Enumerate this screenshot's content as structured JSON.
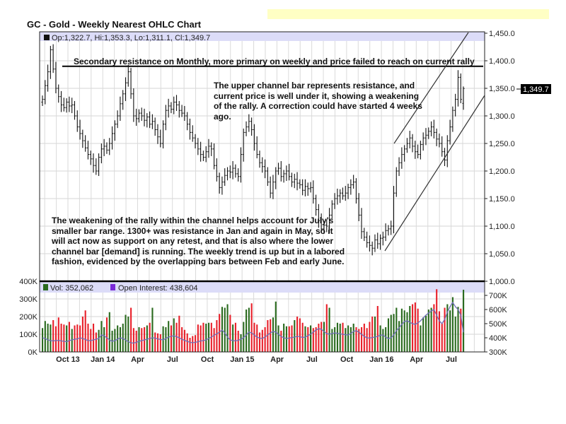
{
  "title": "GC - Gold - Weekly Nearest OHLC Chart",
  "price_legend": "Op:1,322.7, Hi:1,353.3, Lo:1,311.1, Cl:1,349.7",
  "last_price_label": "1,349.7",
  "volume_legend": {
    "vol": "Vol: 352,062",
    "oi": "Open Interest: 438,604"
  },
  "annotations": {
    "resistance": "Secondary resistance on Monthly, more primary on weekly and price failed to reach on current rally",
    "upper_channel": "The upper channel bar represents resistance, and current price is well under it, showing a weakening of the rally.  A correction could have started 4 weeks ago.",
    "lower_channel": "The weakening of the rally within the channel helps account for July's smaller bar range.  1300+ was resistance in Jan and again in May, so it will act now as support on any retest, and that is also where the lower channel bar [demand] is running.  The weekly trend is up but in a labored fashion, evidenced by the overlapping bars between Feb and early June."
  },
  "colors": {
    "up": "#2a6a1e",
    "down": "#e8202a",
    "oi_line": "#7070b8",
    "legend_band": "#dcdcf8",
    "highlight_bar": "#ffffc4"
  },
  "chart_data": [
    {
      "type": "ohlc",
      "title": "GC - Gold - Weekly Nearest OHLC Chart",
      "ylim": [
        1000,
        1450
      ],
      "y_ticks": [
        "1,450.0",
        "1,400.0",
        "1,350.0",
        "1,300.0",
        "1,250.0",
        "1,200.0",
        "1,150.0",
        "1,100.0",
        "1,050.0",
        "1,000.0"
      ],
      "x_ticks": [
        "Oct 13",
        "Jan 14",
        "Apr",
        "Jul",
        "Oct",
        "Jan 15",
        "Apr",
        "Jul",
        "Oct",
        "Jan 16",
        "Apr",
        "Jul"
      ],
      "grid": true,
      "resistance_level": 1390,
      "last": {
        "open": 1322.7,
        "high": 1353.3,
        "low": 1311.1,
        "close": 1349.7
      },
      "closes": [
        1330,
        1355,
        1380,
        1420,
        1385,
        1350,
        1335,
        1320,
        1315,
        1325,
        1318,
        1320,
        1300,
        1280,
        1268,
        1255,
        1242,
        1230,
        1222,
        1210,
        1200,
        1225,
        1240,
        1245,
        1238,
        1250,
        1268,
        1285,
        1300,
        1322,
        1340,
        1360,
        1380,
        1340,
        1300,
        1295,
        1305,
        1300,
        1292,
        1298,
        1285,
        1290,
        1275,
        1262,
        1250,
        1285,
        1310,
        1318,
        1312,
        1325,
        1320,
        1310,
        1305,
        1300,
        1285,
        1270,
        1260,
        1250,
        1240,
        1230,
        1225,
        1235,
        1245,
        1240,
        1210,
        1190,
        1170,
        1180,
        1192,
        1200,
        1198,
        1205,
        1195,
        1190,
        1230,
        1270,
        1280,
        1290,
        1275,
        1250,
        1230,
        1215,
        1208,
        1200,
        1180,
        1160,
        1180,
        1200,
        1205,
        1190,
        1195,
        1200,
        1190,
        1180,
        1185,
        1178,
        1175,
        1165,
        1172,
        1168,
        1170,
        1150,
        1130,
        1110,
        1095,
        1102,
        1100,
        1120,
        1140,
        1150,
        1155,
        1160,
        1155,
        1160,
        1170,
        1175,
        1180,
        1150,
        1120,
        1090,
        1080,
        1070,
        1065,
        1060,
        1075,
        1068,
        1078,
        1080,
        1092,
        1095,
        1100,
        1160,
        1200,
        1215,
        1230,
        1240,
        1250,
        1260,
        1245,
        1235,
        1230,
        1248,
        1260,
        1265,
        1272,
        1280,
        1270,
        1258,
        1250,
        1235,
        1220,
        1255,
        1280,
        1310,
        1330,
        1370,
        1330,
        1349.7
      ]
    },
    {
      "type": "bar",
      "left_ylim_k": [
        0,
        400
      ],
      "left_ticks": [
        "400K",
        "300K",
        "200K",
        "100K",
        "0K"
      ],
      "right_ylim_k": [
        300,
        800
      ],
      "right_ticks": [
        "700K",
        "600K",
        "500K",
        "400K",
        "300K"
      ],
      "x_ticks": [
        "Oct 13",
        "Jan 14",
        "Apr",
        "Jul",
        "Oct",
        "Jan 15",
        "Apr",
        "Jul",
        "Oct",
        "Jan 16",
        "Apr",
        "Jul"
      ],
      "series": [
        {
          "name": "Vol",
          "type": "bar",
          "values_k": [
            135,
            175,
            160,
            155,
            180,
            145,
            195,
            160,
            155,
            150,
            170,
            130,
            150,
            155,
            150,
            200,
            235,
            160,
            130,
            160,
            110,
            125,
            175,
            140,
            195,
            225,
            120,
            130,
            150,
            140,
            160,
            210,
            200,
            250,
            135,
            120,
            140,
            135,
            140,
            150,
            165,
            250,
            110,
            105,
            100,
            145,
            140,
            175,
            150,
            190,
            165,
            205,
            140,
            125,
            105,
            80,
            90,
            95,
            155,
            150,
            165,
            160,
            165,
            165,
            135,
            180,
            215,
            255,
            250,
            270,
            210,
            155,
            165,
            120,
            100,
            170,
            240,
            250,
            275,
            165,
            155,
            110,
            125,
            140,
            180,
            185,
            195,
            285,
            150,
            120,
            160,
            145,
            145,
            150,
            180,
            200,
            190,
            165,
            145,
            140,
            150,
            135,
            140,
            160,
            170,
            170,
            270,
            250,
            130,
            140,
            165,
            160,
            165,
            135,
            150,
            140,
            160,
            140,
            130,
            140,
            160,
            135,
            170,
            200,
            200,
            260,
            150,
            130,
            140,
            190,
            210,
            215,
            250,
            175,
            245,
            235,
            225,
            260,
            270,
            280,
            245,
            150,
            195,
            205,
            240,
            250,
            270,
            355,
            230,
            160,
            250,
            270,
            235,
            310,
            200,
            255,
            245,
            352
          ]
        },
        {
          "name": "Open Interest",
          "type": "line",
          "values_k": [
            400,
            395,
            385,
            380,
            378,
            380,
            382,
            378,
            375,
            372,
            380,
            385,
            390,
            392,
            400,
            395,
            388,
            380,
            380,
            385,
            390,
            395,
            420,
            415,
            400,
            385,
            375,
            380,
            390,
            400,
            395,
            385,
            372,
            365,
            362,
            368,
            375,
            380,
            385,
            390,
            395,
            400,
            398,
            392,
            388,
            385,
            395,
            405,
            410,
            415,
            408,
            400,
            390,
            382,
            375,
            368,
            365,
            368,
            372,
            378,
            380,
            385,
            395,
            405,
            418,
            428,
            440,
            455,
            435,
            405,
            385,
            380,
            378,
            382,
            390,
            400,
            420,
            440,
            435,
            420,
            405,
            398,
            395,
            405,
            420,
            435,
            445,
            440,
            425,
            410,
            400,
            395,
            398,
            402,
            405,
            410,
            408,
            402,
            405,
            415,
            425,
            440,
            455,
            465,
            460,
            445,
            430,
            425,
            430,
            435,
            432,
            428,
            425,
            422,
            420,
            430,
            445,
            450,
            440,
            425,
            410,
            400,
            398,
            402,
            405,
            410,
            418,
            420,
            405,
            395,
            400,
            420,
            450,
            470,
            495,
            515,
            520,
            510,
            500,
            495,
            505,
            520,
            540,
            560,
            575,
            590,
            600,
            560,
            520,
            500,
            530,
            580,
            620,
            650,
            620,
            600,
            560,
            438.6
          ]
        }
      ]
    }
  ]
}
